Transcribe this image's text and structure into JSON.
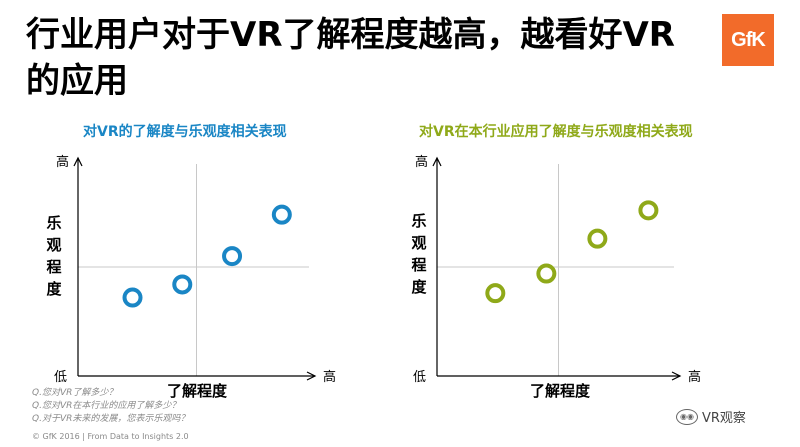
{
  "title": "行业用户对于VR了解程度越高，越看好VR的应用",
  "logo": "GfK",
  "colors": {
    "blue": "#1a86c5",
    "green": "#8fa919",
    "axis": "#000000",
    "grid": "#c8c8c8"
  },
  "chart_data": [
    {
      "type": "scatter",
      "title": "对VR的了解度与乐观度相关表现",
      "xlabel": "了解程度",
      "ylabel": "乐观程度",
      "y_low": "低",
      "y_high": "高",
      "x_high": "高",
      "xlim": [
        0,
        100
      ],
      "ylim": [
        0,
        100
      ],
      "points": [
        {
          "x": 23,
          "y": 36
        },
        {
          "x": 44,
          "y": 42
        },
        {
          "x": 65,
          "y": 55
        },
        {
          "x": 86,
          "y": 74
        }
      ]
    },
    {
      "type": "scatter",
      "title": "对VR在本行业应用了解度与乐观度相关表现",
      "xlabel": "了解程度",
      "ylabel": "乐观程度",
      "y_low": "低",
      "y_high": "高",
      "x_high": "高",
      "xlim": [
        0,
        100
      ],
      "ylim": [
        0,
        100
      ],
      "points": [
        {
          "x": 24,
          "y": 38
        },
        {
          "x": 45,
          "y": 47
        },
        {
          "x": 66,
          "y": 63
        },
        {
          "x": 87,
          "y": 76
        }
      ]
    }
  ],
  "footnotes": [
    "Q.您对VR了解多少？",
    "Q.您对VR在本行业的应用了解多少？",
    "Q.对于VR未来的发展，您表示乐观吗？"
  ],
  "copyright": "© GfK 2016 | From Data to Insights 2.0",
  "watermark": "VR观察"
}
